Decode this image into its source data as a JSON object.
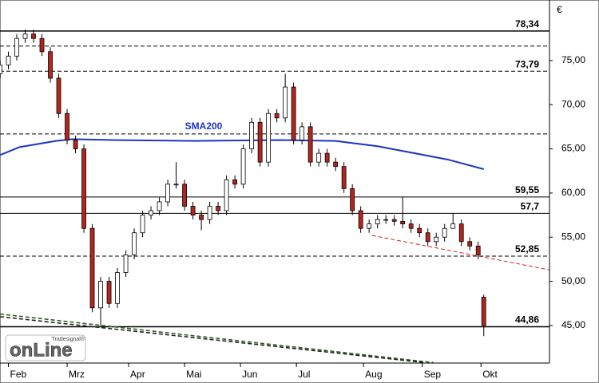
{
  "chart_data": {
    "type": "candlestick",
    "unit": "€",
    "xlim": [
      0,
      196.5
    ],
    "ylim": [
      40.75,
      81.4
    ],
    "xticks": [
      {
        "value": 3,
        "label": "Feb"
      },
      {
        "value": 24,
        "label": "Mrz"
      },
      {
        "value": 46,
        "label": "Apr"
      },
      {
        "value": 66,
        "label": "Mai"
      },
      {
        "value": 86,
        "label": "Jun"
      },
      {
        "value": 106,
        "label": "Jul"
      },
      {
        "value": 130,
        "label": "Aug"
      },
      {
        "value": 151,
        "label": "Sep"
      },
      {
        "value": 172,
        "label": "Okt"
      }
    ],
    "yticks": [
      {
        "value": 45,
        "label": "45,00"
      },
      {
        "value": 50,
        "label": "50,00"
      },
      {
        "value": 55,
        "label": "55,00"
      },
      {
        "value": 60,
        "label": "60,00"
      },
      {
        "value": 65,
        "label": "65,00"
      },
      {
        "value": 70,
        "label": "70,00"
      },
      {
        "value": 75,
        "label": "75,00"
      }
    ],
    "up_color": "#ffffff",
    "down_color": "#b3261e",
    "x": [
      0,
      3,
      6,
      9,
      12,
      15,
      18,
      21,
      24,
      27,
      30,
      33,
      36,
      39,
      42,
      45,
      48,
      51,
      54,
      57,
      60,
      63,
      66,
      69,
      72,
      75,
      78,
      81,
      84,
      87,
      90,
      93,
      96,
      99,
      102,
      105,
      108,
      111,
      114,
      117,
      120,
      123,
      126,
      129,
      132,
      135,
      138,
      141,
      144,
      147,
      150,
      153,
      156,
      159,
      162,
      165,
      168,
      171,
      173
    ],
    "open": [
      73.5,
      74.5,
      75.5,
      77.5,
      78,
      77.5,
      76,
      73,
      69,
      66,
      65,
      56,
      47,
      50,
      47.5,
      51,
      53,
      55.5,
      57.5,
      58,
      59,
      61,
      61,
      58.5,
      57.5,
      57,
      58.5,
      58,
      61.5,
      61,
      65,
      68,
      63.5,
      69,
      68.5,
      72,
      66,
      67.5,
      63.5,
      64.5,
      63.5,
      63,
      60.5,
      58,
      56,
      56.5,
      57,
      57,
      56.8,
      56.5,
      56,
      55.5,
      54.5,
      55,
      56,
      56.5,
      54.5,
      54,
      48.2
    ],
    "high": [
      75,
      76,
      78,
      78.5,
      78.5,
      78,
      76.5,
      73.5,
      69.5,
      66.5,
      65.5,
      56.5,
      50.5,
      50.5,
      51.5,
      53.5,
      56,
      58,
      58.5,
      59.5,
      61.5,
      63.5,
      61.5,
      59,
      58,
      59,
      59,
      62,
      62,
      65.5,
      68.5,
      68.5,
      69.5,
      69.5,
      73.5,
      72.5,
      68,
      68,
      65,
      65,
      64,
      63.5,
      61,
      58.5,
      57,
      57.5,
      57.5,
      57.5,
      59.5,
      57,
      56.5,
      56,
      55.5,
      56.5,
      57.7,
      57,
      55,
      54.5,
      48.5
    ],
    "low": [
      73,
      74,
      75,
      77,
      77,
      75.5,
      72.5,
      68.5,
      65.5,
      64.5,
      55.5,
      46.5,
      45,
      47,
      47,
      50.5,
      52.5,
      55,
      57,
      57.5,
      58.5,
      60.5,
      58,
      57,
      55.8,
      56.5,
      57.5,
      57.5,
      60.5,
      60.5,
      64.5,
      63,
      63,
      68,
      68,
      65.5,
      65.5,
      63,
      63,
      63,
      62.5,
      60,
      57.5,
      55.5,
      55.5,
      56,
      56.5,
      56.3,
      56,
      55.5,
      55,
      54,
      54,
      54.5,
      56,
      54,
      53.5,
      52.5,
      43.8
    ],
    "close": [
      74.5,
      75.5,
      77.5,
      78,
      77.5,
      76,
      73,
      69,
      66,
      65,
      56,
      47,
      50,
      47.5,
      51,
      53,
      55.5,
      57.5,
      58,
      59,
      61,
      61,
      58.5,
      57.5,
      57,
      58.5,
      58,
      61.5,
      61,
      65,
      68,
      63.5,
      69,
      68.5,
      72,
      66,
      67.5,
      63.5,
      64.5,
      63.5,
      63,
      60.5,
      58,
      56,
      56.5,
      57,
      57,
      56.8,
      56.5,
      56,
      55.5,
      54.5,
      55,
      56,
      56.5,
      54.5,
      54,
      53,
      45
    ],
    "sma": {
      "name": "SMA200",
      "color": "#1c34c8",
      "x": [
        0,
        7,
        20,
        26,
        40,
        70,
        100,
        120,
        135,
        145,
        160,
        173
      ],
      "values": [
        64.3,
        65.2,
        65.9,
        66.1,
        66.0,
        65.9,
        66.0,
        65.9,
        65.3,
        64.7,
        63.8,
        62.7
      ]
    },
    "levels": [
      {
        "value": 78.34,
        "label": "78,34",
        "style": "solid"
      },
      {
        "value": 76.63,
        "style": "dashed"
      },
      {
        "value": 73.79,
        "label": "73,79",
        "style": "dashed"
      },
      {
        "value": 66.69,
        "style": "dashed"
      },
      {
        "value": 59.55,
        "label": "59,55",
        "style": "solid"
      },
      {
        "value": 57.7,
        "label": "57,7",
        "style": "solid"
      },
      {
        "value": 52.85,
        "label": "52,85",
        "style": "dashed"
      },
      {
        "value": 44.86,
        "label": "44,86",
        "style": "solid"
      }
    ],
    "trendlines": [
      {
        "color": "#d42020",
        "x": [
          133,
          196.5
        ],
        "values": [
          55.2,
          51.3
        ]
      },
      {
        "color": "#2e5e1e",
        "x": [
          0,
          155
        ],
        "values": [
          46.3,
          40.8
        ]
      },
      {
        "color": "#222222",
        "x": [
          0,
          152
        ],
        "values": [
          46.0,
          40.8
        ]
      }
    ],
    "logo": {
      "brand": "Tradesignal®",
      "name": "onLine"
    }
  }
}
